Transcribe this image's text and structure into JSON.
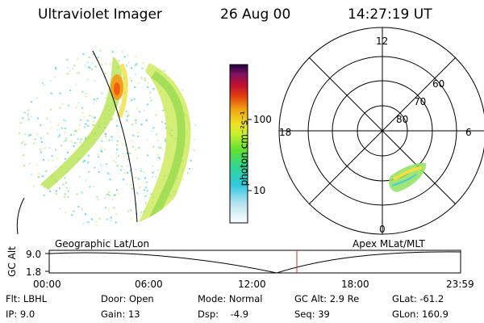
{
  "header": {
    "instrument": "Ultraviolet Imager",
    "date": "26 Aug 00",
    "time": "14:27:19 UT"
  },
  "colorbar": {
    "unit_label": "photon cm⁻²s⁻¹",
    "ticks": [
      "100",
      "10"
    ]
  },
  "polar": {
    "mlt_labels": [
      "12",
      "18",
      "6",
      "0"
    ],
    "lat_labels": [
      "60",
      "70",
      "80"
    ]
  },
  "timeline": {
    "left_title": "Geographic Lat/Lon",
    "right_title": "Apex MLat/MLT",
    "y_axis_label": "GC Alt",
    "y_ticks": [
      "9.0",
      "1.8"
    ],
    "x_ticks": [
      "00:00",
      "06:00",
      "12:00",
      "18:00",
      "23:59"
    ],
    "current_time_marker": "14:27:19"
  },
  "info": {
    "row1": [
      "Flt: LBHL",
      "Door: Open",
      "Mode: Normal",
      "GC Alt: 2.9 Re",
      "GLat: -61.2"
    ],
    "row2": [
      "IP:  9.0",
      "Gain: 13",
      "Dsp:    -4.9",
      "Seq: 39",
      "GLon: 160.9"
    ]
  }
}
